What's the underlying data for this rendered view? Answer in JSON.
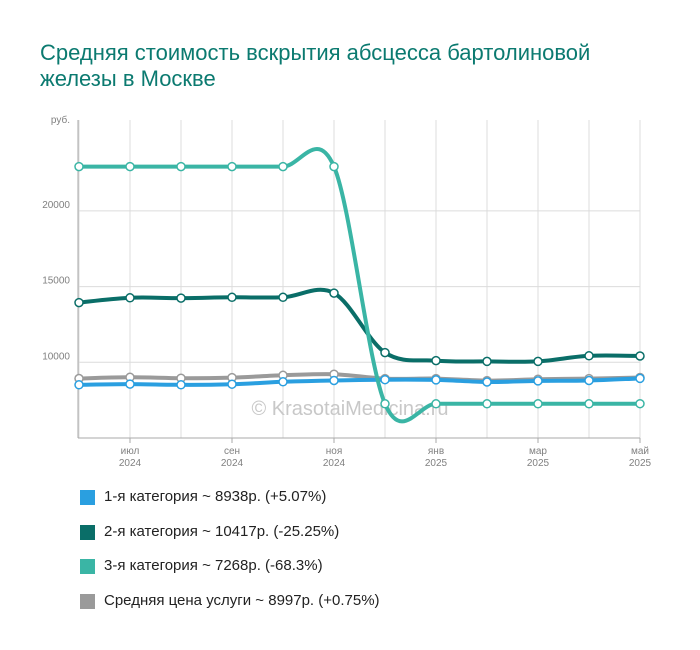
{
  "title": "Средняя стоимость вскрытия абсцесса бартолиновой железы в Москве",
  "watermark": "© KrasotaiMedicina.ru",
  "chart_data": {
    "type": "line",
    "title": "Средняя стоимость вскрытия абсцесса бартолиновой железы в Москве",
    "y_unit_label": "руб.",
    "ylim": [
      5000,
      26000
    ],
    "y_ticks": [
      10000,
      15000,
      20000
    ],
    "y_tick_labels": [
      "10000",
      "15000",
      "20000"
    ],
    "x": [
      "2024-06",
      "2024-07",
      "2024-08",
      "2024-09",
      "2024-10",
      "2024-11",
      "2024-12",
      "2025-01",
      "2025-02",
      "2025-03",
      "2025-04",
      "2025-05"
    ],
    "x_tick_labels": [
      {
        "month": "июл",
        "year": "2024",
        "index": 1
      },
      {
        "month": "сен",
        "year": "2024",
        "index": 3
      },
      {
        "month": "ноя",
        "year": "2024",
        "index": 5
      },
      {
        "month": "янв",
        "year": "2025",
        "index": 7
      },
      {
        "month": "мар",
        "year": "2025",
        "index": 9
      },
      {
        "month": "май",
        "year": "2025",
        "index": 11
      }
    ],
    "grid": true,
    "series": [
      {
        "name": "1-я категория",
        "color": "#2a9fe0",
        "values": [
          8510,
          8560,
          8510,
          8550,
          8710,
          8800,
          8850,
          8840,
          8700,
          8770,
          8800,
          8938
        ]
      },
      {
        "name": "2-я категория",
        "color": "#0a6e68",
        "values": [
          13940,
          14260,
          14240,
          14290,
          14290,
          14570,
          10640,
          10110,
          10060,
          10060,
          10430,
          10417
        ]
      },
      {
        "name": "3-я категория",
        "color": "#3ab5a5",
        "values": [
          22920,
          22920,
          22920,
          22920,
          22920,
          22920,
          7260,
          7260,
          7260,
          7260,
          7260,
          7268
        ]
      },
      {
        "name": "Средняя цена услуги",
        "color": "#9a9a9a",
        "values": [
          8930,
          9010,
          8950,
          8990,
          9140,
          9210,
          8920,
          8920,
          8790,
          8880,
          8920,
          8997
        ]
      }
    ]
  },
  "legend": [
    {
      "label": "1-я категория ~ 8938р. (+5.07%)",
      "color": "#2a9fe0"
    },
    {
      "label": "2-я категория ~ 10417р. (-25.25%)",
      "color": "#0a6e68"
    },
    {
      "label": "3-я категория ~ 7268р. (-68.3%)",
      "color": "#3ab5a5"
    },
    {
      "label": "Средняя цена услуги ~ 8997р. (+0.75%)",
      "color": "#9a9a9a"
    }
  ]
}
